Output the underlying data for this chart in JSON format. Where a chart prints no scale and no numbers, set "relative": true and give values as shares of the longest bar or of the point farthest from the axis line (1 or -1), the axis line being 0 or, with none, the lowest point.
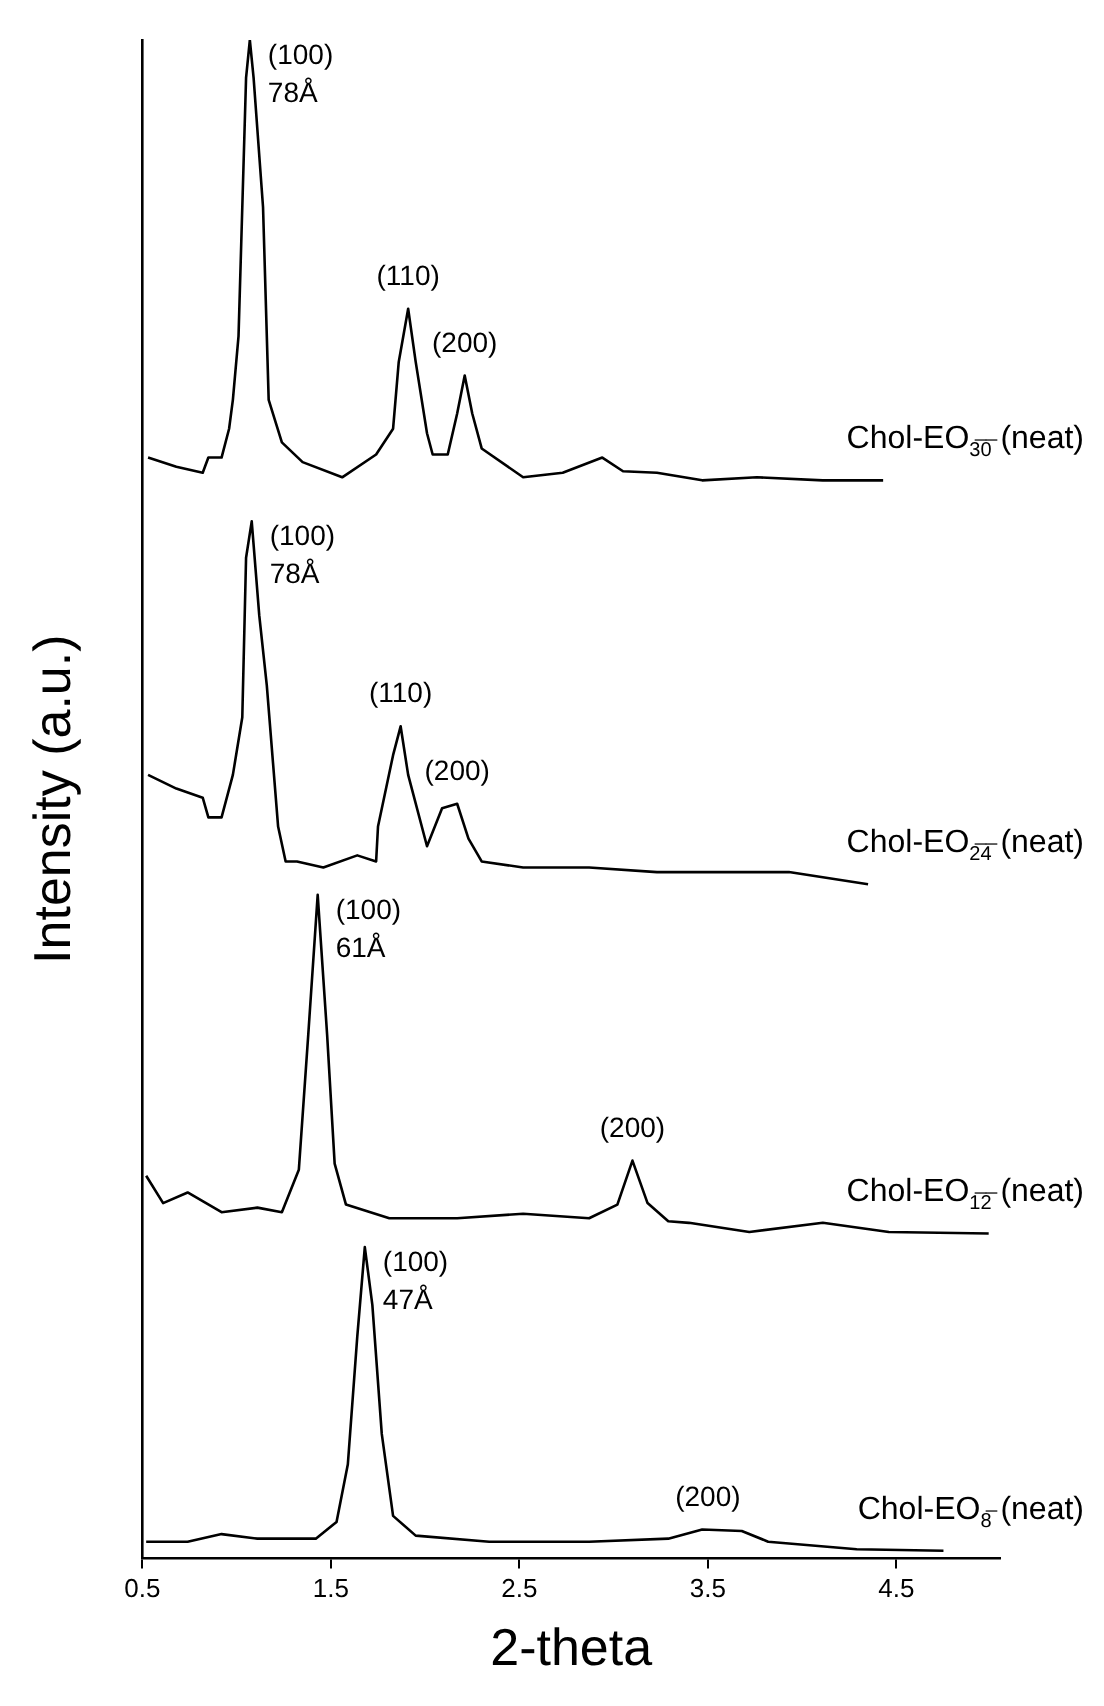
{
  "chart_data": {
    "type": "line",
    "relative": true,
    "xlabel": "2-theta",
    "ylabel": "Intensity (a.u.)",
    "xlim": [
      0.5,
      5.05
    ],
    "xticks": [
      0.5,
      1.5,
      2.5,
      3.5,
      4.5
    ],
    "series": [
      {
        "name": "Chol-EO$_{3̅0̅}$ (neat)",
        "color": "#000000",
        "x": [
          0.53,
          0.68,
          0.82,
          0.85,
          0.92,
          0.96,
          0.98,
          1.01,
          1.05,
          1.07,
          1.09,
          1.14,
          1.17,
          1.24,
          1.35,
          1.56,
          1.74,
          1.83,
          1.86,
          1.91,
          1.95,
          2.01,
          2.04,
          2.12,
          2.17,
          2.21,
          2.25,
          2.3,
          2.52,
          2.73,
          2.94,
          3.05,
          3.23,
          3.47,
          3.76,
          4.11,
          4.43
        ],
        "values": [
          0.725,
          0.719,
          0.715,
          0.725,
          0.725,
          0.744,
          0.763,
          0.805,
          0.975,
          1.0,
          0.975,
          0.89,
          0.763,
          0.735,
          0.722,
          0.712,
          0.727,
          0.744,
          0.788,
          0.823,
          0.788,
          0.741,
          0.727,
          0.727,
          0.754,
          0.779,
          0.754,
          0.731,
          0.712,
          0.715,
          0.725,
          0.716,
          0.715,
          0.71,
          0.712,
          0.71,
          0.71
        ]
      },
      {
        "name": "Chol-EO$_{2̅4̅}$ (neat)",
        "color": "#000000",
        "x": [
          0.53,
          0.68,
          0.82,
          0.85,
          0.92,
          0.98,
          1.03,
          1.05,
          1.08,
          1.12,
          1.16,
          1.22,
          1.26,
          1.32,
          1.46,
          1.64,
          1.74,
          1.75,
          1.83,
          1.87,
          1.91,
          2.01,
          2.09,
          2.17,
          2.23,
          2.3,
          2.52,
          2.87,
          3.23,
          3.58,
          3.93,
          4.35
        ],
        "values": [
          0.516,
          0.507,
          0.501,
          0.488,
          0.488,
          0.516,
          0.554,
          0.659,
          0.683,
          0.621,
          0.575,
          0.482,
          0.459,
          0.459,
          0.455,
          0.463,
          0.459,
          0.482,
          0.529,
          0.548,
          0.516,
          0.469,
          0.494,
          0.497,
          0.474,
          0.459,
          0.455,
          0.455,
          0.452,
          0.452,
          0.452,
          0.444
        ]
      },
      {
        "name": "Chol-EO$_{1̅2̅}$ (neat)",
        "color": "#000000",
        "x": [
          0.52,
          0.61,
          0.74,
          0.92,
          1.11,
          1.24,
          1.33,
          1.38,
          1.43,
          1.48,
          1.52,
          1.58,
          1.81,
          2.17,
          2.52,
          2.87,
          3.02,
          3.1,
          3.18,
          3.29,
          3.4,
          3.72,
          4.11,
          4.46,
          4.99
        ],
        "values": [
          0.252,
          0.234,
          0.241,
          0.228,
          0.231,
          0.228,
          0.256,
          0.345,
          0.437,
          0.345,
          0.26,
          0.233,
          0.224,
          0.224,
          0.227,
          0.224,
          0.233,
          0.262,
          0.234,
          0.222,
          0.221,
          0.215,
          0.221,
          0.215,
          0.214
        ]
      },
      {
        "name": "Chol-EO$_{8̅}$ (neat)",
        "color": "#000000",
        "x": [
          0.52,
          0.74,
          0.92,
          1.11,
          1.42,
          1.53,
          1.59,
          1.64,
          1.68,
          1.72,
          1.77,
          1.83,
          1.95,
          2.34,
          2.87,
          3.29,
          3.47,
          3.68,
          3.82,
          4.29,
          4.75
        ],
        "values": [
          0.011,
          0.011,
          0.016,
          0.013,
          0.013,
          0.024,
          0.062,
          0.146,
          0.205,
          0.167,
          0.082,
          0.028,
          0.015,
          0.011,
          0.011,
          0.013,
          0.019,
          0.018,
          0.011,
          0.006,
          0.005
        ]
      }
    ],
    "annotations": [
      {
        "text": "(100)\n78Å",
        "x": 1.07,
        "y": 1.0
      },
      {
        "text": "(110)",
        "x": 1.91,
        "y": 0.823
      },
      {
        "text": "(200)",
        "x": 2.21,
        "y": 0.779
      },
      {
        "text": "(100)\n78Å",
        "x": 1.08,
        "y": 0.683
      },
      {
        "text": "(110)",
        "x": 1.87,
        "y": 0.548
      },
      {
        "text": "(200)",
        "x": 2.17,
        "y": 0.497
      },
      {
        "text": "(100)\n61Å",
        "x": 1.43,
        "y": 0.437
      },
      {
        "text": "(200)",
        "x": 3.1,
        "y": 0.262
      },
      {
        "text": "(100)\n47Å",
        "x": 1.68,
        "y": 0.205
      },
      {
        "text": "(200)",
        "x": 3.5,
        "y": 0.019
      }
    ]
  }
}
